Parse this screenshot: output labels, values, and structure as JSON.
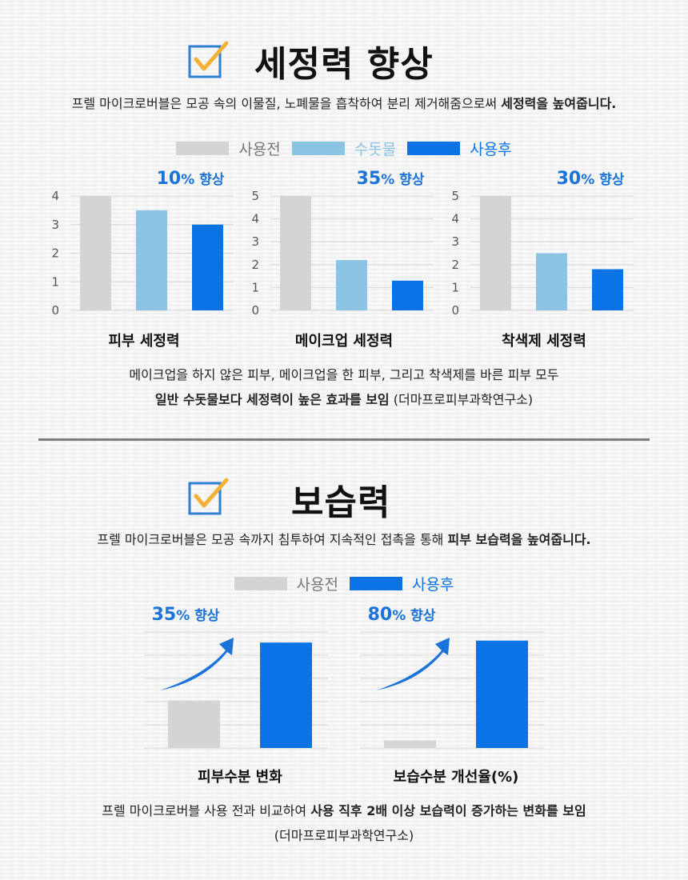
{
  "colors": {
    "before": "#d4d4d4",
    "tap": "#8ac4e2",
    "after": "#0a74e6",
    "accent": "#1a73d8",
    "check_box": "#2d7fd3",
    "check_mark": "#f2b23a",
    "grid": "#d8d8d8"
  },
  "cleansing": {
    "title": "세정력 향상",
    "desc_prefix": "프렐 마이크로버블은 모공 속의 이물질, 노폐물을 흡착하여 분리 제거해줌으로써 ",
    "desc_bold": "세정력을 높여줍니다.",
    "legend": [
      "사용전",
      "수돗물",
      "사용후"
    ],
    "note_line1": "메이크업을 하지 않은 피부, 메이크업을 한 피부, 그리고 착색제를 바른 피부 모두",
    "note_line2_bold": "일반 수돗물보다 세정력이 높은 효과를 보임",
    "note_line2_rest": " (더마프로피부과학연구소)"
  },
  "moisture": {
    "title": "보습력",
    "desc_prefix": "프렐 마이크로버블은 모공 속까지 침투하여 지속적인 접촉을 통해 ",
    "desc_bold": "피부 보습력을 높여줍니다.",
    "legend": [
      "사용전",
      "사용후"
    ],
    "note_line1_prefix": "프렐 마이크로버블 사용 전과 비교하여 ",
    "note_line1_bold": "사용 직후 2배 이상 보습력이 증가하는 변화를 보임",
    "note_line2": "(더마프로피부과학연구소)"
  },
  "chart_data": [
    {
      "type": "bar",
      "title": "피부 세정력",
      "annotation_value": "10",
      "annotation_unit": "% 향상",
      "categories": [
        "사용전",
        "수돗물",
        "사용후"
      ],
      "values": [
        4,
        3.5,
        3
      ],
      "ylim": [
        0,
        4
      ],
      "yticks": [
        "0",
        "1",
        "2",
        "3",
        "4"
      ],
      "grid": true
    },
    {
      "type": "bar",
      "title": "메이크업 세정력",
      "annotation_value": "35",
      "annotation_unit": "% 향상",
      "categories": [
        "사용전",
        "수돗물",
        "사용후"
      ],
      "values": [
        5,
        2.2,
        1.3
      ],
      "ylim": [
        0,
        5
      ],
      "yticks": [
        "0",
        "1",
        "2",
        "3",
        "4",
        "5"
      ],
      "grid": true
    },
    {
      "type": "bar",
      "title": "착색제 세정력",
      "annotation_value": "30",
      "annotation_unit": "% 향상",
      "categories": [
        "사용전",
        "수돗물",
        "사용후"
      ],
      "values": [
        5,
        2.5,
        1.8
      ],
      "ylim": [
        0,
        5
      ],
      "yticks": [
        "0",
        "1",
        "2",
        "3",
        "4",
        "5"
      ],
      "grid": true
    },
    {
      "type": "bar",
      "title": "피부수분 변화",
      "annotation_value": "35",
      "annotation_unit": "% 향상",
      "categories": [
        "사용전",
        "사용후"
      ],
      "values": [
        0.45,
        1.0
      ],
      "ylim": [
        0,
        1.1
      ],
      "grid": true
    },
    {
      "type": "bar",
      "title": "보습수분 개선율(%)",
      "annotation_value": "80",
      "annotation_unit": "% 향상",
      "categories": [
        "사용전",
        "사용후"
      ],
      "values": [
        0.07,
        1.0
      ],
      "ylim": [
        0,
        1.08
      ],
      "grid": true
    }
  ]
}
